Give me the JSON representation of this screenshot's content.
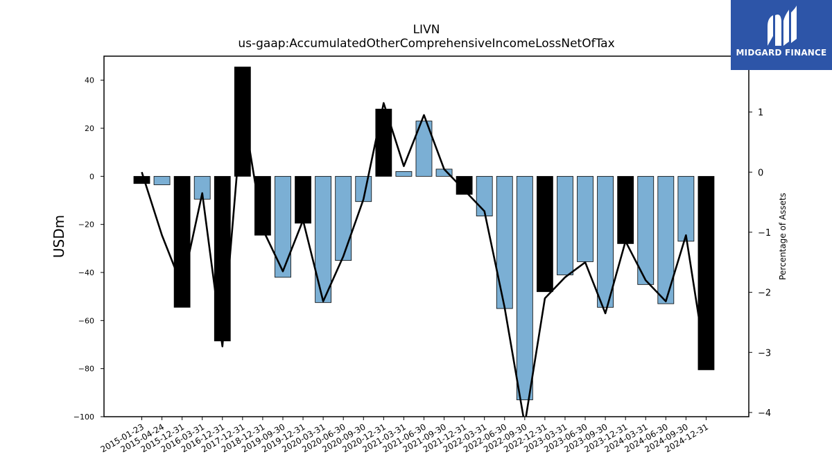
{
  "chart_data": {
    "type": "bar",
    "title": "LIVN",
    "subtitle": "us-gaap:AccumulatedOtherComprehensiveIncomeLossNetOfTax",
    "ylabel": "USDm",
    "y2label": "Percentage of Assets",
    "ylim": [
      -100,
      50
    ],
    "y2lim": [
      -4.07,
      1.93
    ],
    "yticks": [
      40,
      20,
      0,
      -20,
      -40,
      -60,
      -80,
      -100
    ],
    "y2ticks": [
      1,
      0,
      -1,
      -2,
      -3,
      -4
    ],
    "categories": [
      "2015-01-23",
      "2015-04-24",
      "2015-12-31",
      "2016-03-31",
      "2016-12-31",
      "2017-12-31",
      "2018-12-31",
      "2019-09-30",
      "2019-12-31",
      "2020-03-31",
      "2020-06-30",
      "2020-09-30",
      "2020-12-31",
      "2021-03-31",
      "2021-06-30",
      "2021-09-30",
      "2021-12-31",
      "2022-03-31",
      "2022-06-30",
      "2022-09-30",
      "2022-12-31",
      "2023-03-31",
      "2023-06-30",
      "2023-09-30",
      "2023-12-31",
      "2024-03-31",
      "2024-06-30",
      "2024-09-30",
      "2024-12-31"
    ],
    "series": [
      {
        "name": "",
        "axis": "left",
        "style": "bar",
        "values": [
          -3,
          -3.5,
          -54.5,
          -9.5,
          -68.5,
          45.5,
          -24.5,
          -42,
          -19.5,
          -52.5,
          -35,
          -10.5,
          28,
          2,
          23,
          3,
          -7.5,
          -16.5,
          -55,
          -93,
          -48,
          -41,
          -35.5,
          -54.5,
          -28,
          -45,
          -53,
          -27,
          -80.5
        ],
        "colors": [
          "#000000",
          "#7bafd4",
          "#000000",
          "#7bafd4",
          "#000000",
          "#000000",
          "#000000",
          "#7bafd4",
          "#000000",
          "#7bafd4",
          "#7bafd4",
          "#7bafd4",
          "#000000",
          "#7bafd4",
          "#7bafd4",
          "#7bafd4",
          "#000000",
          "#7bafd4",
          "#7bafd4",
          "#7bafd4",
          "#000000",
          "#7bafd4",
          "#7bafd4",
          "#7bafd4",
          "#000000",
          "#7bafd4",
          "#7bafd4",
          "#7bafd4",
          "#000000"
        ]
      },
      {
        "name": "",
        "axis": "right",
        "style": "line",
        "color": "#000000",
        "values": [
          0,
          -1.05,
          -1.9,
          -0.35,
          -2.9,
          1.1,
          -0.95,
          -1.65,
          -0.8,
          -2.15,
          -1.4,
          -0.45,
          1.15,
          0.1,
          0.95,
          0.05,
          -0.3,
          -0.65,
          -2.25,
          -4.2,
          -2.1,
          -1.75,
          -1.5,
          -2.35,
          -1.15,
          -1.8,
          -2.15,
          -1.05,
          -3.2
        ]
      }
    ],
    "grid": false,
    "legend": "none"
  },
  "logo": {
    "text": "MIDGARD FINANCE"
  }
}
